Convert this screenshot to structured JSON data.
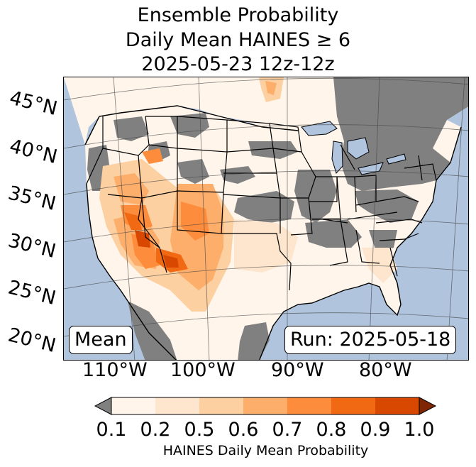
{
  "title": {
    "line1": "Ensemble Probability",
    "line2": "Daily Mean HAINES ≥ 6",
    "line3": "2025-05-23 12z-12z"
  },
  "map": {
    "region": "Contiguous United States",
    "projection": "conic",
    "ocean_color": "#b0c4de",
    "no_data_color": "#808080",
    "lat_labels": [
      "45°N",
      "40°N",
      "35°N",
      "30°N",
      "25°N",
      "20°N"
    ],
    "lon_labels": [
      "110°W",
      "100°W",
      "90°W",
      "80°W"
    ],
    "mean_label": "Mean",
    "run_label": "Run: 2025-05-18"
  },
  "colorbar": {
    "label": "HAINES Daily Mean Probability",
    "ticks": [
      "0.1",
      "0.2",
      "0.5",
      "0.6",
      "0.7",
      "0.8",
      "0.9",
      "1.0"
    ],
    "colors": [
      "#fff5eb",
      "#fee6ce",
      "#fdd0a2",
      "#fdae6b",
      "#fd8d3c",
      "#f16913",
      "#d94801",
      "#7f2704"
    ],
    "under_color": "#808080",
    "over_color": "#7f2704",
    "extend": "both"
  }
}
